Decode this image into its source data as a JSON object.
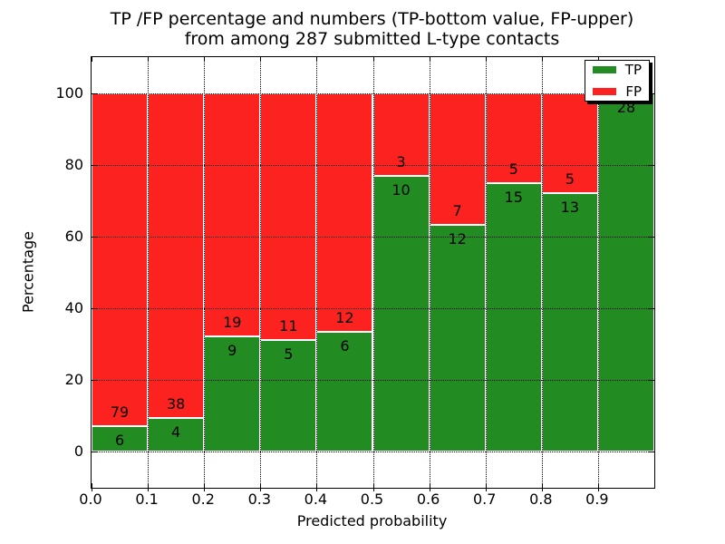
{
  "title": {
    "line1": "TP /FP percentage and numbers (TP-bottom value, FP-upper)",
    "line2": "from among 287 submitted L-type contacts"
  },
  "axes": {
    "xlabel": "Predicted probability",
    "ylabel": "Percentage",
    "x_tick_labels": [
      "0.0",
      "0.1",
      "0.2",
      "0.3",
      "0.4",
      "0.5",
      "0.6",
      "0.7",
      "0.8",
      "0.9"
    ],
    "y_tick_labels": [
      "0",
      "20",
      "40",
      "60",
      "80",
      "100"
    ]
  },
  "legend": {
    "items": [
      {
        "label": "TP",
        "color": "#228b22"
      },
      {
        "label": "FP",
        "color": "#fb2220"
      }
    ]
  },
  "chart_data": {
    "type": "bar",
    "stacked": true,
    "orientation": "vertical",
    "title": "TP /FP percentage and numbers (TP-bottom value, FP-upper) from among 287 submitted L-type contacts",
    "xlabel": "Predicted probability",
    "ylabel": "Percentage",
    "total_submitted": 287,
    "bin_width": 0.1,
    "bin_starts": [
      0.0,
      0.1,
      0.2,
      0.3,
      0.4,
      0.5,
      0.6,
      0.7,
      0.8,
      0.9
    ],
    "series": [
      {
        "name": "TP",
        "color": "#228b22",
        "counts": [
          6,
          4,
          9,
          5,
          6,
          10,
          12,
          15,
          13,
          28
        ]
      },
      {
        "name": "FP",
        "color": "#fb2220",
        "counts": [
          79,
          38,
          19,
          11,
          12,
          3,
          7,
          5,
          5,
          0
        ]
      }
    ],
    "tp_percent_of_bin": [
      7.06,
      9.52,
      32.14,
      31.25,
      33.33,
      76.92,
      63.16,
      75.0,
      72.22,
      100.0
    ],
    "xlim": [
      0.0,
      1.0
    ],
    "ylim": [
      -10,
      110
    ],
    "x_ticks": [
      0.0,
      0.1,
      0.2,
      0.3,
      0.4,
      0.5,
      0.6,
      0.7,
      0.8,
      0.9
    ],
    "y_ticks": [
      0,
      20,
      40,
      60,
      80,
      100
    ],
    "grid": {
      "style": "dotted",
      "color": "#000000",
      "above_bars": true
    },
    "bar_edge_color": "#ffffff",
    "legend_position": "upper right",
    "value_label_rule": "FP count printed just above TP/FP boundary, TP count just below; FP label omitted when count is 0"
  }
}
